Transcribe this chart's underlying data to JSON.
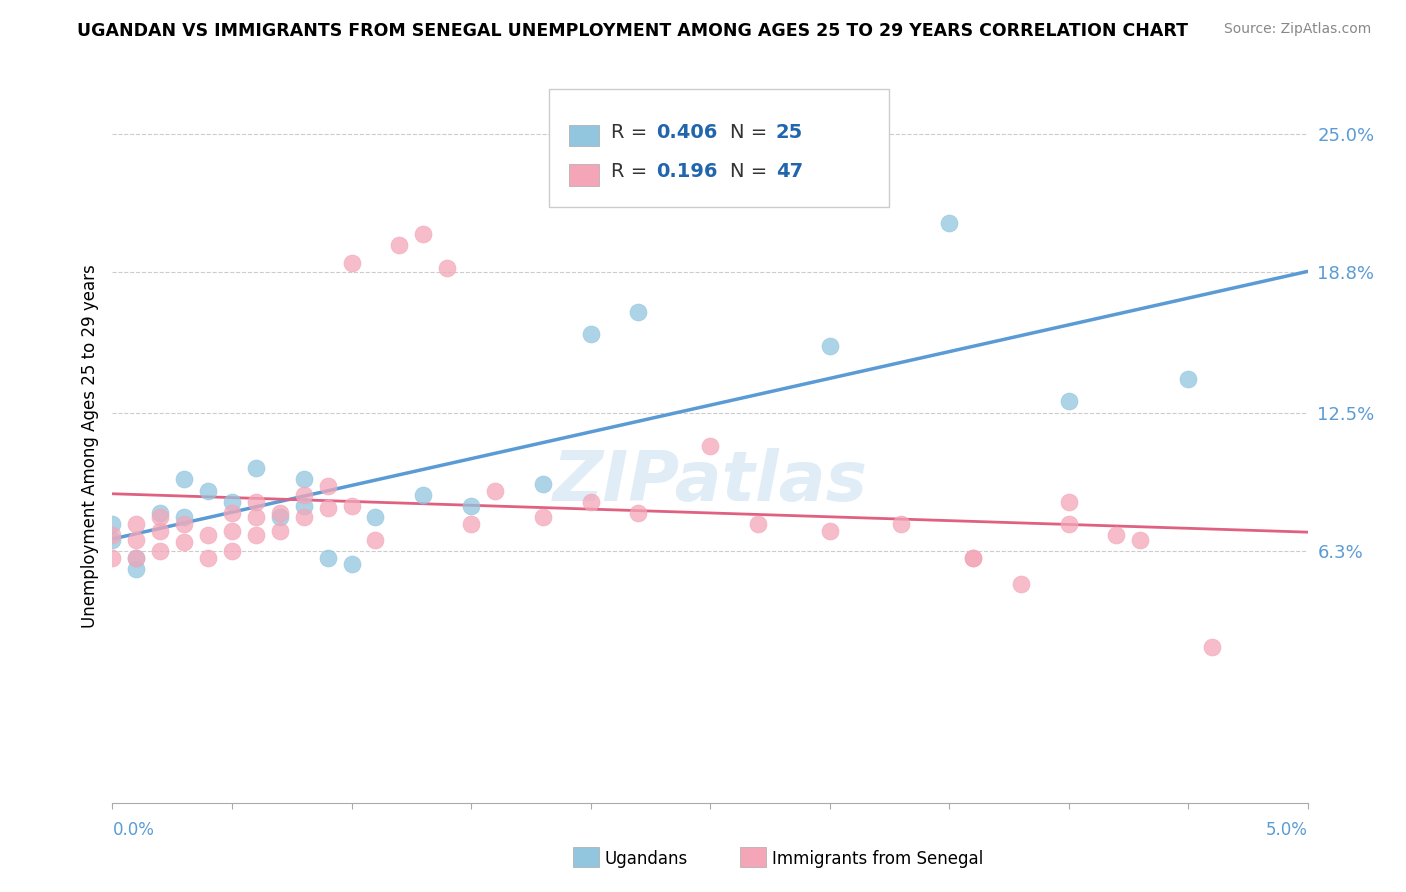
{
  "title": "UGANDAN VS IMMIGRANTS FROM SENEGAL UNEMPLOYMENT AMONG AGES 25 TO 29 YEARS CORRELATION CHART",
  "source": "Source: ZipAtlas.com",
  "ylabel": "Unemployment Among Ages 25 to 29 years",
  "watermark": "ZIPatlas",
  "blue_color": "#92c5de",
  "pink_color": "#f4a6b8",
  "blue_line_color": "#5b9bd5",
  "pink_line_color": "#e06080",
  "xlim": [
    0.0,
    0.05
  ],
  "ylim": [
    -0.05,
    0.27
  ],
  "ytick_vals": [
    0.063,
    0.125,
    0.188,
    0.25
  ],
  "ytick_labels": [
    "6.3%",
    "12.5%",
    "18.8%",
    "25.0%"
  ],
  "ugandan_R": 0.406,
  "ugandan_N": 25,
  "senegal_R": 0.196,
  "senegal_N": 47,
  "ugandan_x": [
    0.0,
    0.0,
    0.001,
    0.001,
    0.002,
    0.003,
    0.003,
    0.004,
    0.005,
    0.006,
    0.007,
    0.008,
    0.008,
    0.009,
    0.01,
    0.011,
    0.013,
    0.015,
    0.018,
    0.02,
    0.022,
    0.03,
    0.035,
    0.04,
    0.045
  ],
  "ugandan_y": [
    0.068,
    0.075,
    0.055,
    0.06,
    0.08,
    0.078,
    0.095,
    0.09,
    0.085,
    0.1,
    0.078,
    0.095,
    0.083,
    0.06,
    0.057,
    0.078,
    0.088,
    0.083,
    0.093,
    0.16,
    0.17,
    0.155,
    0.21,
    0.13,
    0.14
  ],
  "senegal_x": [
    0.0,
    0.0,
    0.001,
    0.001,
    0.001,
    0.002,
    0.002,
    0.002,
    0.003,
    0.003,
    0.004,
    0.004,
    0.005,
    0.005,
    0.005,
    0.006,
    0.006,
    0.006,
    0.007,
    0.007,
    0.008,
    0.008,
    0.009,
    0.009,
    0.01,
    0.01,
    0.011,
    0.012,
    0.013,
    0.014,
    0.015,
    0.016,
    0.018,
    0.02,
    0.022,
    0.025,
    0.027,
    0.03,
    0.033,
    0.036,
    0.036,
    0.038,
    0.04,
    0.04,
    0.042,
    0.043,
    0.046
  ],
  "senegal_y": [
    0.06,
    0.07,
    0.06,
    0.068,
    0.075,
    0.063,
    0.072,
    0.078,
    0.067,
    0.075,
    0.06,
    0.07,
    0.063,
    0.072,
    0.08,
    0.07,
    0.078,
    0.085,
    0.072,
    0.08,
    0.078,
    0.088,
    0.082,
    0.092,
    0.083,
    0.192,
    0.068,
    0.2,
    0.205,
    0.19,
    0.075,
    0.09,
    0.078,
    0.085,
    0.08,
    0.11,
    0.075,
    0.072,
    0.075,
    0.06,
    0.06,
    0.048,
    0.085,
    0.075,
    0.07,
    0.068,
    0.02
  ]
}
